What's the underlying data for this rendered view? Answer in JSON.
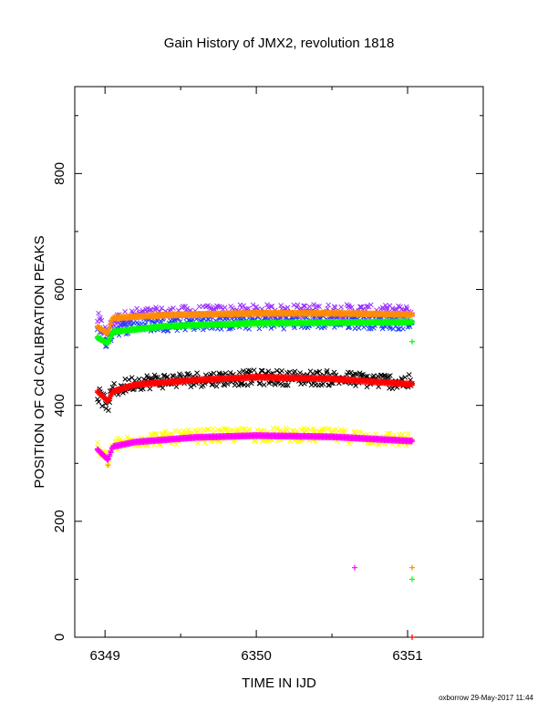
{
  "footer": {
    "credit": "oxborrow 29-May-2017 11:44"
  },
  "colors": {
    "axis": "#000000",
    "purple": "#9b30ff",
    "blue": "#1e3cff",
    "orange": "#ff8c00",
    "green": "#00ff00",
    "black": "#000000",
    "red": "#ff0000",
    "yellow": "#ffff00",
    "magenta": "#ff00ff"
  },
  "chart_data": {
    "type": "scatter",
    "title": "Gain History of JMX2, revolution 1818",
    "xlabel": "TIME IN IJD",
    "ylabel": "POSITION OF Cd CALIBRATION PEAKS",
    "xlim": [
      6348.8,
      6351.5
    ],
    "ylim": [
      0,
      950
    ],
    "xticks": [
      6349,
      6350,
      6351
    ],
    "yticks": [
      0,
      200,
      400,
      600,
      800
    ],
    "grid": false,
    "legend": "none",
    "series": [
      {
        "color": "purple",
        "marker": "x",
        "kind": "noisy",
        "x_range": [
          6348.95,
          6351.03
        ],
        "levels": [
          [
            6348.95,
            550
          ],
          [
            6349.02,
            520
          ],
          [
            6349.05,
            545
          ],
          [
            6349.2,
            556
          ],
          [
            6349.6,
            560
          ],
          [
            6350.0,
            562
          ],
          [
            6350.5,
            563
          ],
          [
            6351.0,
            560
          ]
        ],
        "noise": 12
      },
      {
        "color": "blue",
        "marker": "x",
        "kind": "noisy",
        "x_range": [
          6348.95,
          6351.03
        ],
        "levels": [
          [
            6348.95,
            530
          ],
          [
            6349.02,
            505
          ],
          [
            6349.05,
            530
          ],
          [
            6349.2,
            538
          ],
          [
            6349.6,
            542
          ],
          [
            6350.0,
            543
          ],
          [
            6350.5,
            545
          ],
          [
            6351.0,
            543
          ]
        ],
        "noise": 12
      },
      {
        "color": "black",
        "marker": "x",
        "kind": "noisy",
        "x_range": [
          6348.95,
          6351.03
        ],
        "levels": [
          [
            6348.95,
            420
          ],
          [
            6349.02,
            400
          ],
          [
            6349.05,
            425
          ],
          [
            6349.2,
            440
          ],
          [
            6349.6,
            445
          ],
          [
            6350.0,
            448
          ],
          [
            6350.5,
            447
          ],
          [
            6351.0,
            440
          ]
        ],
        "noise": 13
      },
      {
        "color": "yellow",
        "marker": "x",
        "kind": "noisy",
        "x_range": [
          6348.95,
          6351.03
        ],
        "levels": [
          [
            6348.95,
            325
          ],
          [
            6349.02,
            305
          ],
          [
            6349.05,
            330
          ],
          [
            6349.2,
            340
          ],
          [
            6349.6,
            347
          ],
          [
            6350.0,
            350
          ],
          [
            6350.5,
            348
          ],
          [
            6351.0,
            340
          ]
        ],
        "noise": 12
      },
      {
        "color": "orange",
        "marker": "+",
        "kind": "smooth",
        "x_range": [
          6348.95,
          6351.03
        ],
        "levels": [
          [
            6348.95,
            537
          ],
          [
            6349.02,
            525
          ],
          [
            6349.05,
            552
          ],
          [
            6349.4,
            557
          ],
          [
            6350.0,
            560
          ],
          [
            6350.5,
            560
          ],
          [
            6351.0,
            558
          ]
        ],
        "outliers": [
          [
            6351.03,
            120
          ],
          [
            6349.02,
            530
          ]
        ]
      },
      {
        "color": "green",
        "marker": "+",
        "kind": "smooth",
        "x_range": [
          6348.95,
          6351.03
        ],
        "levels": [
          [
            6348.95,
            518
          ],
          [
            6349.02,
            508
          ],
          [
            6349.05,
            528
          ],
          [
            6349.4,
            538
          ],
          [
            6350.0,
            543
          ],
          [
            6350.5,
            544
          ],
          [
            6351.0,
            545
          ]
        ],
        "outliers": [
          [
            6351.03,
            100
          ],
          [
            6351.03,
            510
          ]
        ]
      },
      {
        "color": "red",
        "marker": "+",
        "kind": "smooth",
        "x_range": [
          6348.95,
          6351.03
        ],
        "levels": [
          [
            6348.95,
            425
          ],
          [
            6349.02,
            408
          ],
          [
            6349.05,
            425
          ],
          [
            6349.2,
            437
          ],
          [
            6349.6,
            445
          ],
          [
            6350.0,
            450
          ],
          [
            6350.5,
            447
          ],
          [
            6351.0,
            438
          ]
        ],
        "outliers": [
          [
            6351.03,
            0
          ]
        ]
      },
      {
        "color": "magenta",
        "marker": "+",
        "kind": "smooth",
        "x_range": [
          6348.95,
          6351.03
        ],
        "levels": [
          [
            6348.95,
            325
          ],
          [
            6349.02,
            307
          ],
          [
            6349.05,
            330
          ],
          [
            6349.2,
            338
          ],
          [
            6349.6,
            346
          ],
          [
            6350.0,
            349
          ],
          [
            6350.5,
            347
          ],
          [
            6351.0,
            340
          ]
        ],
        "outliers": [
          [
            6350.65,
            120
          ]
        ]
      },
      {
        "color": "orange",
        "marker": "+",
        "kind": "points",
        "points": [
          [
            6349.02,
            297
          ]
        ]
      }
    ]
  }
}
